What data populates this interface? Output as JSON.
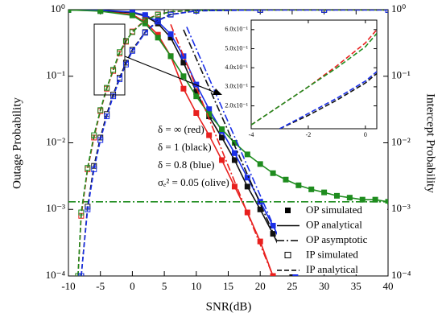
{
  "chart_data": {
    "type": "line",
    "xlabel": "SNR(dB)",
    "ylabel": "Outage Probability",
    "y2label": "Intercept Probability",
    "xlim": [
      -10,
      40
    ],
    "xticks": [
      -10,
      -5,
      0,
      5,
      10,
      15,
      20,
      25,
      30,
      35,
      40
    ],
    "ylim": [
      0.0001,
      1
    ],
    "ylog": true,
    "yticks": [
      {
        "value": 0.0001,
        "label": "10⁻⁴"
      },
      {
        "value": 0.001,
        "label": "10⁻³"
      },
      {
        "value": 0.01,
        "label": "10⁻²"
      },
      {
        "value": 0.1,
        "label": "10⁻¹"
      },
      {
        "value": 1,
        "label": "10⁰"
      }
    ],
    "y2lim": [
      0.0001,
      1
    ],
    "y2ticks": [
      {
        "value": 0.0001,
        "label": "10⁻⁴"
      },
      {
        "value": 0.001,
        "label": "10⁻³"
      },
      {
        "value": 0.01,
        "label": "10⁻²"
      },
      {
        "value": 0.1,
        "label": "10⁻¹"
      },
      {
        "value": 1,
        "label": "10⁰"
      }
    ],
    "annotations": [
      "δ = ∞ (red)",
      "δ = 1 (black)",
      "δ = 0.8 (blue)",
      "σₑ² = 0.05 (olive)"
    ],
    "legend": [
      {
        "label": "OP simulated",
        "symbol": "filled-square"
      },
      {
        "label": "OP analytical",
        "symbol": "solid"
      },
      {
        "label": "OP asymptotic",
        "symbol": "dashdot"
      },
      {
        "label": "IP simulated",
        "symbol": "hollow-square"
      },
      {
        "label": "IP analytical",
        "symbol": "dash"
      }
    ],
    "series": [
      {
        "color": "#e8201e",
        "line": "solid",
        "marker": "filled",
        "x": [
          -10,
          -5,
          0,
          2,
          4,
          6,
          8,
          10,
          12,
          14,
          16,
          18,
          20,
          22
        ],
        "values": [
          0.99,
          0.96,
          0.85,
          0.65,
          0.42,
          0.2,
          0.065,
          0.028,
          0.013,
          0.0055,
          0.0022,
          0.0009,
          0.00033,
          0.0001
        ]
      },
      {
        "color": "#111111",
        "line": "solid",
        "marker": "filled",
        "x": [
          -10,
          -5,
          0,
          2,
          4,
          6,
          8,
          10,
          12,
          14,
          16,
          18,
          20,
          22,
          24,
          25
        ],
        "values": [
          0.99,
          0.97,
          0.9,
          0.8,
          0.62,
          0.38,
          0.16,
          0.058,
          0.025,
          0.012,
          0.0055,
          0.0022,
          0.001,
          0.00043,
          0.00017,
          0.0001
        ]
      },
      {
        "color": "#1a2fe8",
        "line": "solid",
        "marker": "filled",
        "x": [
          -10,
          -5,
          0,
          2,
          4,
          6,
          8,
          10,
          12,
          14,
          16,
          18,
          20,
          22,
          24,
          25.5
        ],
        "values": [
          0.99,
          0.98,
          0.92,
          0.83,
          0.66,
          0.43,
          0.2,
          0.075,
          0.032,
          0.015,
          0.007,
          0.003,
          0.0013,
          0.00057,
          0.00023,
          0.0001
        ]
      },
      {
        "color": "#1e8c1e",
        "line": "solid",
        "marker": "filled",
        "x": [
          -10,
          -5,
          0,
          2,
          4,
          6,
          8,
          10,
          12,
          14,
          16,
          18,
          20,
          22,
          24,
          26,
          28,
          30,
          32,
          34,
          36,
          38,
          40
        ],
        "values": [
          0.99,
          0.95,
          0.82,
          0.62,
          0.38,
          0.2,
          0.1,
          0.05,
          0.027,
          0.016,
          0.01,
          0.0067,
          0.0048,
          0.0035,
          0.0028,
          0.0023,
          0.002,
          0.0018,
          0.0016,
          0.0015,
          0.0014,
          0.0014,
          0.0013
        ]
      },
      {
        "color": "#e8201e",
        "line": "dashdot",
        "x": [
          6,
          22
        ],
        "values": [
          0.6,
          0.0001
        ]
      },
      {
        "color": "#111111",
        "line": "dashdot",
        "x": [
          8,
          25
        ],
        "values": [
          0.5,
          0.0001
        ]
      },
      {
        "color": "#1a2fe8",
        "line": "dashdot",
        "x": [
          8.5,
          25.5
        ],
        "values": [
          0.55,
          0.0001
        ]
      },
      {
        "color": "#1e8c1e",
        "line": "dashdot",
        "x": [
          -10,
          40
        ],
        "values": [
          0.0013,
          0.0013
        ]
      },
      {
        "color": "#e8201e",
        "line": "dash",
        "marker": "hollow",
        "x": [
          -8.5,
          -8,
          -7,
          -6,
          -5,
          -4,
          -3,
          -2,
          -1,
          0,
          2,
          4,
          6,
          10,
          20,
          30,
          40
        ],
        "values": [
          0.0001,
          0.0008,
          0.004,
          0.012,
          0.03,
          0.065,
          0.12,
          0.22,
          0.33,
          0.47,
          0.7,
          0.85,
          0.93,
          0.98,
          0.99,
          0.99,
          0.99
        ]
      },
      {
        "color": "#1e8c1e",
        "line": "dash",
        "marker": "hollow",
        "x": [
          -8.5,
          -8,
          -7,
          -6,
          -5,
          -4,
          -3,
          -2,
          -1,
          0,
          2,
          4,
          6,
          10,
          20,
          30,
          40
        ],
        "values": [
          0.0001,
          0.0009,
          0.0042,
          0.013,
          0.031,
          0.067,
          0.125,
          0.23,
          0.34,
          0.46,
          0.69,
          0.84,
          0.93,
          0.98,
          0.99,
          0.99,
          0.99
        ]
      },
      {
        "color": "#111111",
        "line": "dash",
        "marker": "hollow",
        "x": [
          -8,
          -7,
          -6,
          -5,
          -4,
          -3,
          -2,
          -1,
          0,
          2,
          4,
          6,
          10,
          20,
          30,
          40
        ],
        "values": [
          0.0001,
          0.0011,
          0.0045,
          0.012,
          0.027,
          0.053,
          0.095,
          0.16,
          0.25,
          0.46,
          0.69,
          0.85,
          0.96,
          0.99,
          0.99,
          0.99
        ]
      },
      {
        "color": "#1a2fe8",
        "line": "dash",
        "marker": "hollow",
        "x": [
          -8,
          -7,
          -6,
          -5,
          -4,
          -3,
          -2,
          -1,
          0,
          2,
          4,
          6,
          10,
          20,
          30,
          40
        ],
        "values": [
          0.0001,
          0.001,
          0.004,
          0.011,
          0.025,
          0.05,
          0.09,
          0.15,
          0.24,
          0.45,
          0.68,
          0.84,
          0.96,
          0.99,
          0.99,
          0.99
        ]
      }
    ],
    "inset": {
      "xlim": [
        -4,
        0.4
      ],
      "xticks": [
        -4,
        -2,
        0
      ],
      "ylim": [
        0.08,
        0.65
      ],
      "yticks": [
        {
          "value": 0.2,
          "label": "2.0x10⁻¹"
        },
        {
          "value": 0.3,
          "label": "3.0x10⁻¹"
        },
        {
          "value": 0.4,
          "label": "4.0x10⁻¹"
        },
        {
          "value": 0.5,
          "label": "5.0x10⁻¹"
        },
        {
          "value": 0.6,
          "label": "6.0x10⁻¹"
        }
      ],
      "series": [
        {
          "color": "#e8201e",
          "line": "dash",
          "x": [
            -4,
            -3,
            -2,
            -1,
            0,
            0.4
          ],
          "values": [
            0.1,
            0.2,
            0.3,
            0.41,
            0.53,
            0.6
          ]
        },
        {
          "color": "#1e8c1e",
          "line": "dash",
          "x": [
            -4,
            -3,
            -2,
            -1,
            0,
            0.4
          ],
          "values": [
            0.1,
            0.2,
            0.3,
            0.4,
            0.51,
            0.58
          ]
        },
        {
          "color": "#111111",
          "line": "dash",
          "x": [
            -3,
            -2,
            -1,
            0,
            0.4
          ],
          "values": [
            0.08,
            0.15,
            0.23,
            0.32,
            0.37
          ]
        },
        {
          "color": "#1a2fe8",
          "line": "dash",
          "x": [
            -3,
            -2,
            -1,
            0,
            0.4
          ],
          "values": [
            0.08,
            0.16,
            0.24,
            0.33,
            0.38
          ]
        }
      ]
    }
  }
}
